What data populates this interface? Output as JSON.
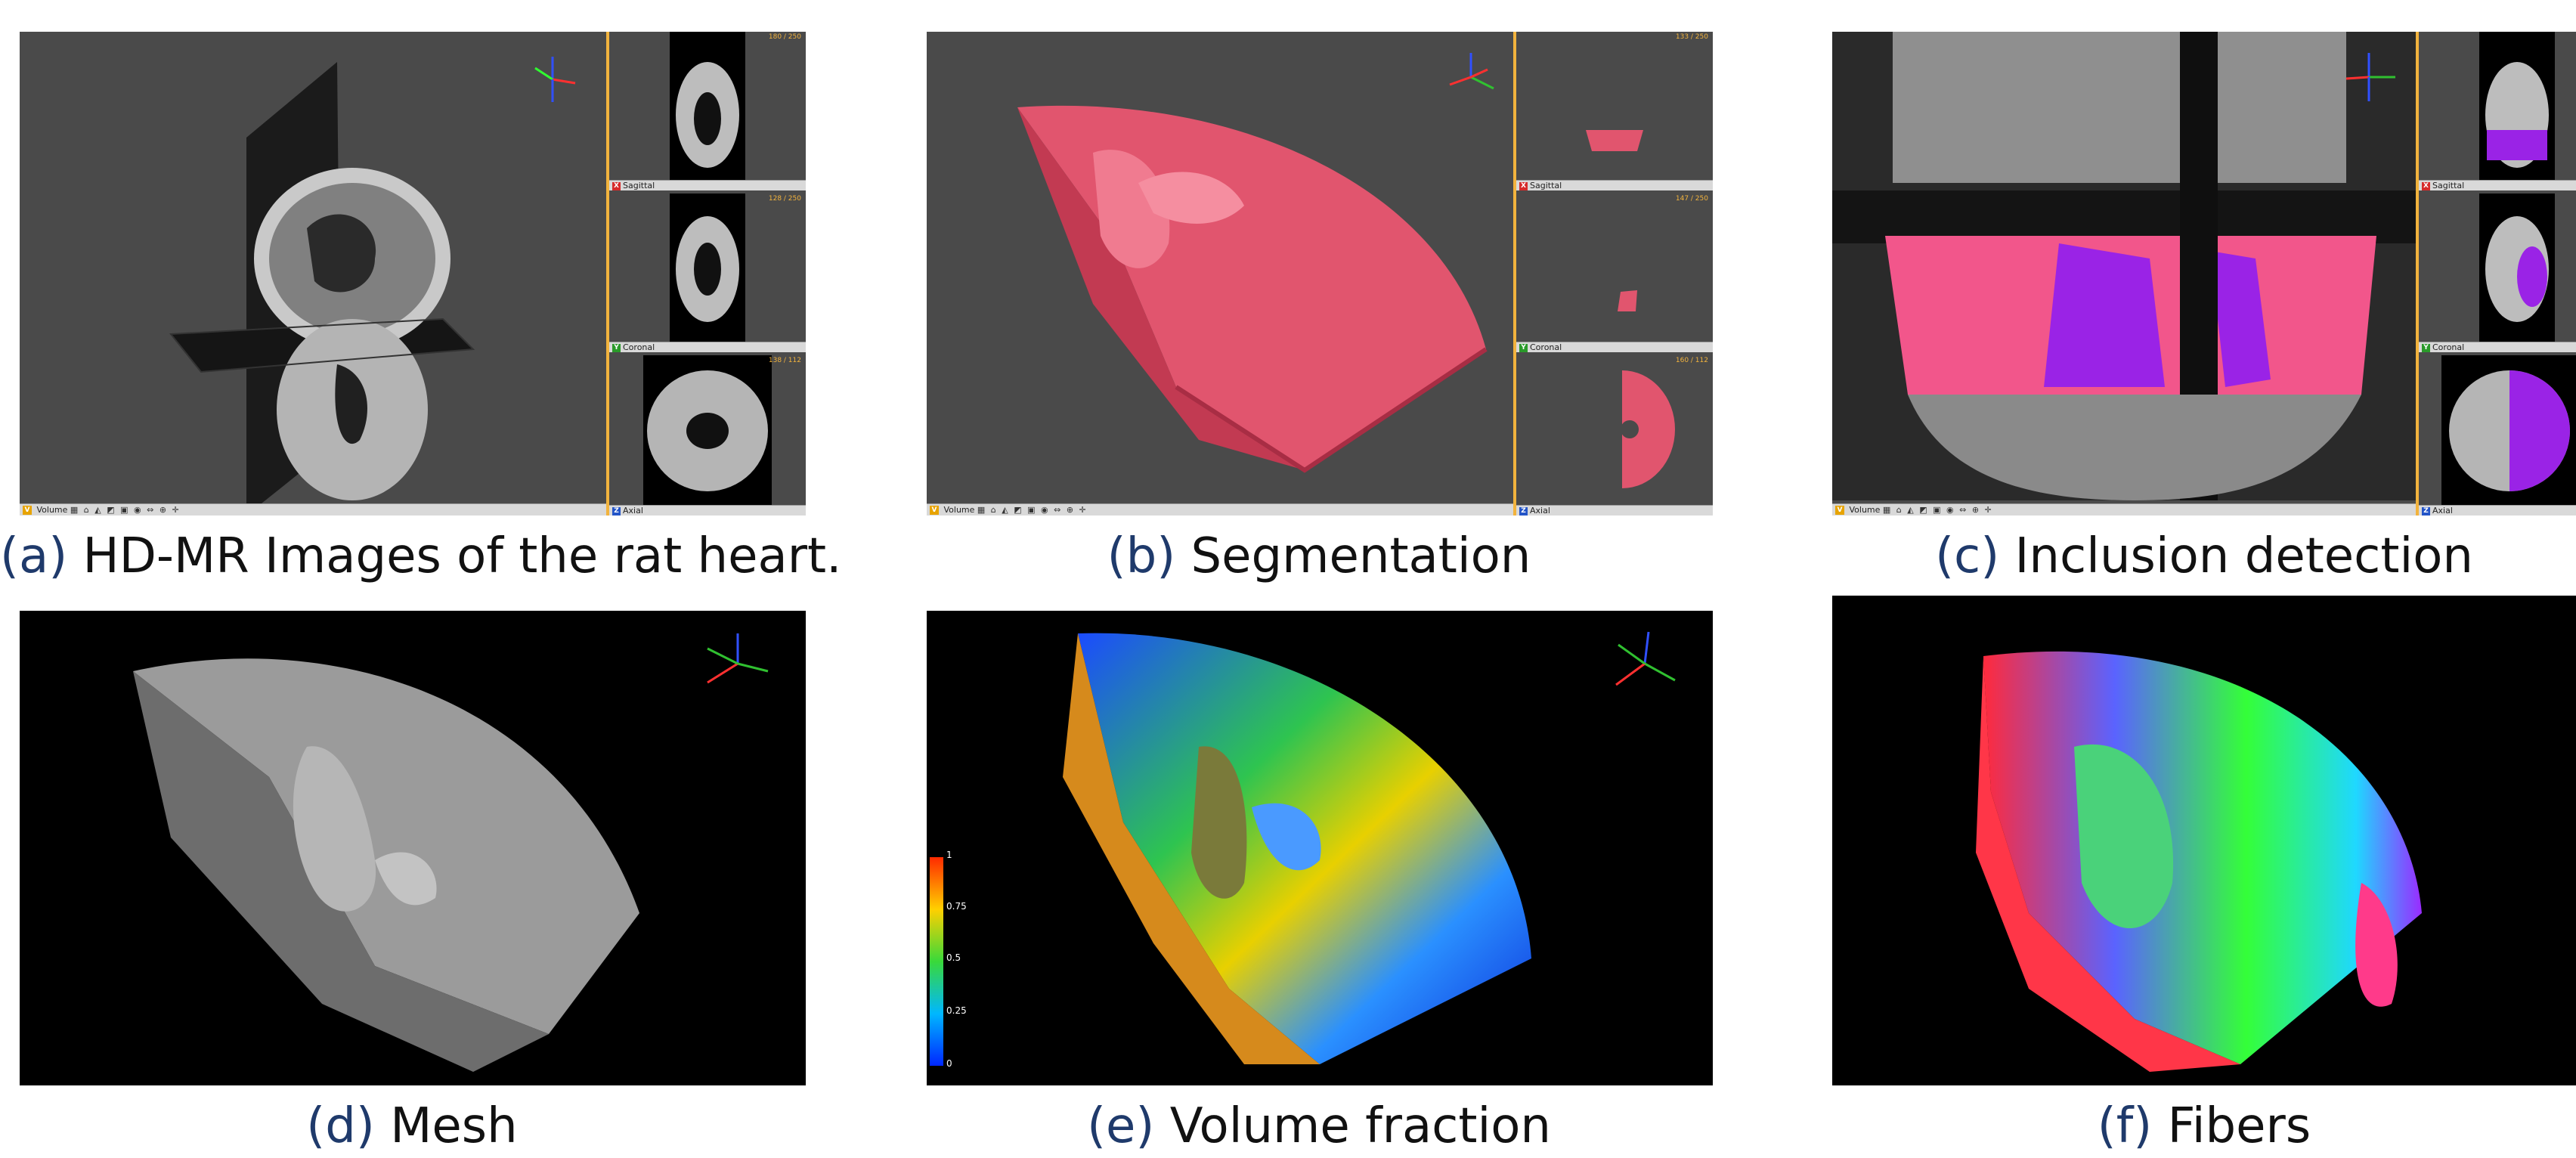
{
  "captions": [
    {
      "tag": "(a)",
      "text": "HD-MR Images of the rat heart."
    },
    {
      "tag": "(b)",
      "text": "Segmentation"
    },
    {
      "tag": "(c)",
      "text": "Inclusion detection"
    },
    {
      "tag": "(d)",
      "text": "Mesh"
    },
    {
      "tag": "(e)",
      "text": "Volume fraction"
    },
    {
      "tag": "(f)",
      "text": "Fibers"
    }
  ],
  "viewer": {
    "volume_label": "Volume",
    "sagittal_label": "Sagittal",
    "coronal_label": "Coronal",
    "axial_label": "Axial",
    "sagittal_badge": "X",
    "coronal_badge": "Y",
    "axial_badge": "Z",
    "volume_badge": "V",
    "tool_icons": "▦ ⌂ ◭ ◩ ▣ ◉ ⇔ ⊕ ✛"
  },
  "slice_counts": {
    "a_sagittal": "180 / 250",
    "a_coronal": "128 / 250",
    "a_axial": "138 / 112",
    "b_sagittal": "133 / 250",
    "b_coronal": "147 / 250",
    "b_axial": "160 / 112"
  },
  "colorbar": {
    "ticks": [
      "1",
      "0.75",
      "0.5",
      "0.25",
      "0"
    ],
    "colors": [
      "#ff2a00",
      "#ffd000",
      "#39d93a",
      "#00b7ff",
      "#0026ff"
    ]
  }
}
